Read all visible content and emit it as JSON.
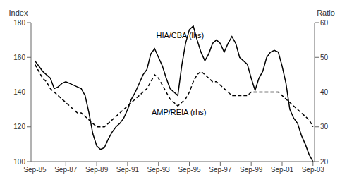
{
  "chart_data": {
    "type": "line",
    "ylabel": "Index",
    "y2label": "Ratio",
    "xlim": [
      1985.5,
      2003.85
    ],
    "xticks": [
      {
        "value": 1985.75,
        "label": "Sep-85"
      },
      {
        "value": 1987.75,
        "label": "Sep-87"
      },
      {
        "value": 1989.75,
        "label": "Sep-89"
      },
      {
        "value": 1991.75,
        "label": "Sep-91"
      },
      {
        "value": 1993.75,
        "label": "Sep-93"
      },
      {
        "value": 1995.75,
        "label": "Sep-95"
      },
      {
        "value": 1997.75,
        "label": "Sep-97"
      },
      {
        "value": 1999.75,
        "label": "Sep-99"
      },
      {
        "value": 2001.75,
        "label": "Sep-01"
      },
      {
        "value": 2003.75,
        "label": "Sep-03"
      }
    ],
    "ylim": [
      100,
      180
    ],
    "yticks": [
      100,
      120,
      140,
      160,
      180
    ],
    "y2lim": [
      20,
      60
    ],
    "y2ticks": [
      20,
      30,
      40,
      50,
      60
    ],
    "grid": false,
    "x": [
      1985.75,
      1986.0,
      1986.25,
      1986.5,
      1986.75,
      1987.0,
      1987.25,
      1987.5,
      1987.75,
      1988.0,
      1988.25,
      1988.5,
      1988.75,
      1989.0,
      1989.25,
      1989.5,
      1989.75,
      1990.0,
      1990.25,
      1990.5,
      1990.75,
      1991.0,
      1991.25,
      1991.5,
      1991.75,
      1992.0,
      1992.25,
      1992.5,
      1992.75,
      1993.0,
      1993.25,
      1993.5,
      1993.75,
      1994.0,
      1994.25,
      1994.5,
      1994.75,
      1995.0,
      1995.25,
      1995.5,
      1995.75,
      1996.0,
      1996.25,
      1996.5,
      1996.75,
      1997.0,
      1997.25,
      1997.5,
      1997.75,
      1998.0,
      1998.25,
      1998.5,
      1998.75,
      1999.0,
      1999.25,
      1999.5,
      1999.75,
      2000.0,
      2000.25,
      2000.5,
      2000.75,
      2001.0,
      2001.25,
      2001.5,
      2001.75,
      2002.0,
      2002.25,
      2002.5,
      2002.75,
      2003.0,
      2003.25,
      2003.5,
      2003.75
    ],
    "series": [
      {
        "name": "HIA/CBA (lhs)",
        "color": "#000000",
        "line_style": "solid",
        "values": [
          158,
          155,
          152,
          150,
          148,
          142,
          143,
          145,
          146,
          145,
          144,
          143,
          142,
          138,
          128,
          116,
          109,
          107,
          108,
          113,
          117,
          120,
          122,
          125,
          130,
          136,
          140,
          145,
          150,
          153,
          162,
          165,
          160,
          155,
          148,
          142,
          140,
          138,
          155,
          168,
          176,
          178,
          170,
          163,
          158,
          162,
          168,
          170,
          168,
          163,
          168,
          172,
          168,
          160,
          158,
          156,
          148,
          141,
          148,
          152,
          160,
          163,
          164,
          163,
          155,
          145,
          130,
          125,
          122,
          115,
          110,
          104,
          100
        ]
      },
      {
        "name": "AMP/REIA (rhs)",
        "color": "#000000",
        "line_style": "dashed",
        "axis": "y2",
        "values": [
          48,
          46,
          44,
          43,
          41,
          40,
          39,
          38,
          37,
          36,
          35,
          34,
          34,
          33,
          32,
          31,
          30,
          30,
          30,
          31,
          32,
          33,
          34,
          35,
          36,
          37,
          38,
          39,
          40,
          41,
          43,
          45,
          44,
          42,
          40,
          38,
          37,
          36,
          37,
          38,
          40,
          43,
          45,
          46,
          45,
          44,
          43,
          43,
          42,
          41,
          40,
          39,
          39,
          39,
          39,
          39,
          40,
          40,
          40,
          40,
          40,
          40,
          40,
          40,
          39,
          38,
          37,
          36,
          35,
          34,
          33,
          32,
          30
        ]
      }
    ],
    "annotations": [
      {
        "text": "HIA/CBA (lhs)",
        "x": 1993.6,
        "y": 171
      },
      {
        "text": "AMP/REIA (rhs)",
        "x": 1993.3,
        "y": 127
      }
    ]
  }
}
